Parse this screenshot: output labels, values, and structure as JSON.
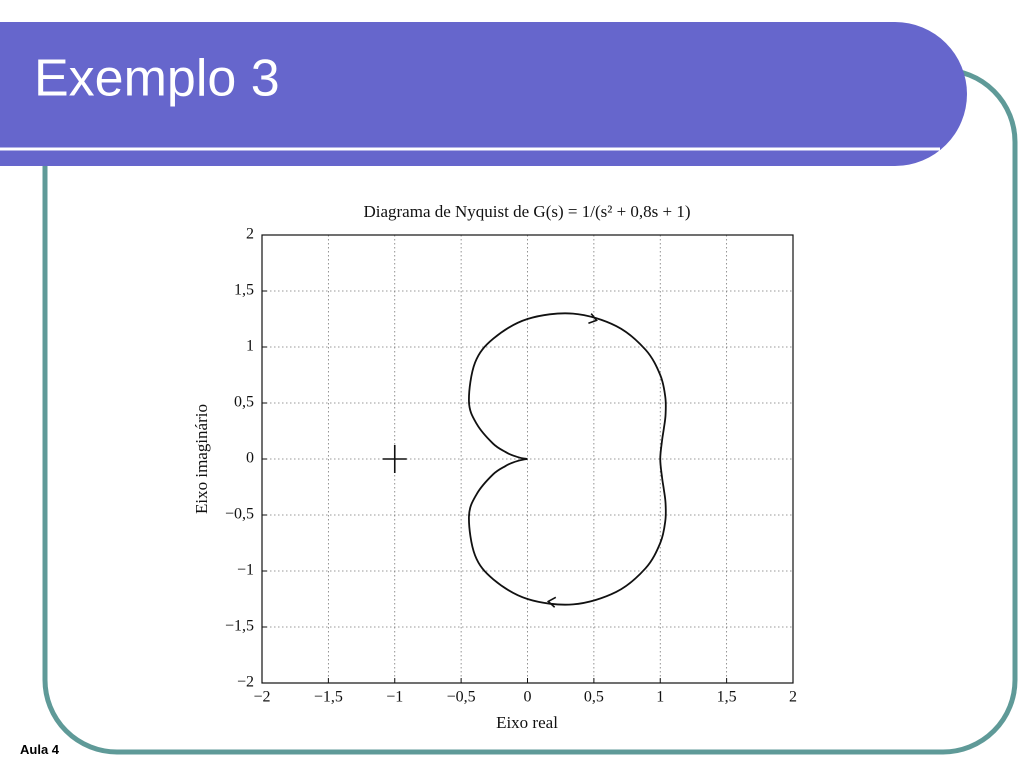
{
  "slide": {
    "title": "Exemplo 3",
    "footer": "Aula 4"
  },
  "chart_data": {
    "type": "line",
    "title": "Diagrama de Nyquist de G(s) = 1/(s² + 0,8s + 1)",
    "xlabel": "Eixo real",
    "ylabel": "Eixo imaginário",
    "xlim": [
      -2,
      2
    ],
    "ylim": [
      -2,
      2
    ],
    "xticks": [
      {
        "value": -2,
        "label": "−2"
      },
      {
        "value": -1.5,
        "label": "−1,5"
      },
      {
        "value": -1,
        "label": "−1"
      },
      {
        "value": -0.5,
        "label": "−0,5"
      },
      0,
      {
        "value": 0.5,
        "label": "0,5"
      },
      1,
      {
        "value": 1.5,
        "label": "1,5"
      },
      2
    ],
    "yticks": [
      {
        "value": -2,
        "label": "−2"
      },
      {
        "value": -1.5,
        "label": "−1,5"
      },
      {
        "value": -1,
        "label": "−1"
      },
      {
        "value": -0.5,
        "label": "−0,5"
      },
      0,
      {
        "value": 0.5,
        "label": "0,5"
      },
      1,
      {
        "value": 1.5,
        "label": "1,5"
      },
      2
    ],
    "grid": true,
    "color": "#111111",
    "critical_point": [
      -1,
      0
    ],
    "x": [
      0,
      -0.028,
      -0.064,
      -0.115,
      -0.166,
      -0.26,
      -0.383,
      -0.441,
      -0.395,
      -0.257,
      0,
      0.343,
      0.668,
      0.889,
      1,
      1.038,
      1.04,
      1.027,
      1.014,
      1,
      1.014,
      1.027,
      1.04,
      1.038,
      1,
      0.889,
      0.668,
      0.343,
      0,
      -0.257,
      -0.395,
      -0.441,
      -0.383,
      -0.26,
      -0.166,
      -0.115,
      -0.064,
      -0.028,
      0
    ],
    "y": [
      0,
      0.004,
      0.014,
      0.034,
      0.063,
      0.138,
      0.314,
      0.515,
      0.861,
      1.075,
      1.25,
      1.298,
      1.187,
      0.976,
      0.75,
      0.554,
      0.396,
      0.271,
      0.169,
      0,
      -0.169,
      -0.271,
      -0.396,
      -0.554,
      -0.75,
      -0.976,
      -1.187,
      -1.298,
      -1.25,
      -1.075,
      -0.861,
      -0.515,
      -0.314,
      -0.138,
      -0.063,
      -0.034,
      -0.014,
      -0.004,
      0
    ]
  }
}
